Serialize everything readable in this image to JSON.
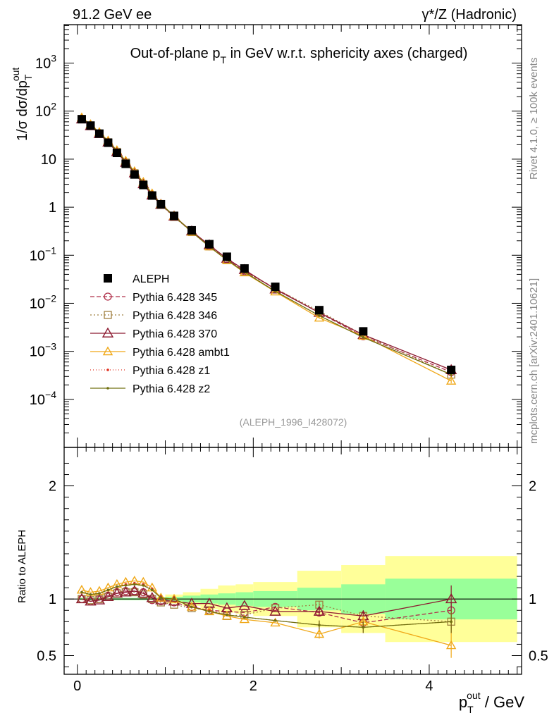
{
  "header": {
    "left": "91.2 GeV ee",
    "right_prefix": "γ*/Z",
    "right_suffix": " (Hadronic)"
  },
  "side_labels": {
    "rivet": "Rivet 4.1.0, ≥ 100k events",
    "mcplots": "mcplots.cern.ch [arXiv:2401.10621]"
  },
  "chart_data": {
    "type": "line",
    "title_main": "Out-of-plane p",
    "title_sub": "T",
    "title_rest": " in GeV w.r.t. sphericity axes (charged)",
    "watermark": "(ALEPH_1996_I428072)",
    "ylabel_text": "1/σ  dσ/dp",
    "ylabel_sub": "T",
    "ylabel_sup": "out",
    "xlabel_main": "p",
    "xlabel_sub": "T",
    "xlabel_sup": "out",
    "xlabel_rest": " / GeV",
    "ratio_ylabel": "Ratio to ALEPH",
    "xlim": [
      -0.15,
      5.05
    ],
    "ylim_main_log": [
      -5.0,
      3.8
    ],
    "ylim_ratio": [
      0.335,
      2.34
    ],
    "x_ticks": [
      "0",
      "2",
      "4"
    ],
    "y_ticks_main": [
      "10^-4",
      "10^-3",
      "10^-2",
      "10^-1",
      "1",
      "10",
      "10^2",
      "10^3"
    ],
    "y_ticks_ratio": [
      "0.5",
      "1",
      "2"
    ],
    "x": [
      0.05,
      0.15,
      0.25,
      0.35,
      0.45,
      0.55,
      0.65,
      0.75,
      0.85,
      0.95,
      1.1,
      1.3,
      1.5,
      1.7,
      1.9,
      2.25,
      2.75,
      3.25,
      4.25
    ],
    "bin_edges": [
      0.0,
      0.1,
      0.2,
      0.3,
      0.4,
      0.5,
      0.6,
      0.7,
      0.8,
      0.9,
      1.0,
      1.2,
      1.4,
      1.6,
      1.8,
      2.0,
      2.5,
      3.0,
      3.5,
      5.0
    ],
    "data_label": "ALEPH",
    "data_values": [
      68,
      50,
      34,
      22,
      13.5,
      8.0,
      4.8,
      2.9,
      1.75,
      1.15,
      0.66,
      0.33,
      0.17,
      0.093,
      0.053,
      0.022,
      0.0072,
      0.0026,
      0.00041
    ],
    "band_inner": [
      0.01,
      0.01,
      0.01,
      0.01,
      0.01,
      0.01,
      0.01,
      0.01,
      0.01,
      0.01,
      0.02,
      0.03,
      0.04,
      0.05,
      0.06,
      0.07,
      0.1,
      0.13,
      0.18
    ],
    "band_outer": [
      0.01,
      0.01,
      0.01,
      0.01,
      0.01,
      0.01,
      0.01,
      0.01,
      0.01,
      0.02,
      0.04,
      0.06,
      0.09,
      0.12,
      0.13,
      0.15,
      0.25,
      0.3,
      0.38
    ],
    "series": [
      {
        "name": "Pythia 6.428 345",
        "color": "#b0304a",
        "dash": "6,3",
        "marker": "circle",
        "ratio": [
          1.0,
          0.98,
          1.0,
          1.03,
          1.06,
          1.07,
          1.07,
          1.06,
          0.99,
          0.98,
          0.97,
          0.93,
          0.9,
          0.89,
          0.88,
          0.93,
          0.88,
          0.79,
          0.9
        ],
        "err": [
          0,
          0,
          0,
          0,
          0,
          0,
          0,
          0,
          0,
          0,
          0,
          0,
          0,
          0,
          0,
          0,
          0.03,
          0.04,
          0.07
        ]
      },
      {
        "name": "Pythia 6.428 346",
        "color": "#a08040",
        "dash": "2,3",
        "marker": "square",
        "ratio": [
          1.0,
          0.99,
          1.0,
          1.02,
          1.05,
          1.06,
          1.06,
          1.04,
          1.0,
          0.97,
          0.95,
          0.92,
          0.9,
          0.85,
          0.86,
          0.92,
          0.95,
          0.85,
          0.8
        ],
        "err": [
          0,
          0,
          0,
          0,
          0,
          0,
          0,
          0,
          0,
          0,
          0,
          0,
          0,
          0,
          0,
          0,
          0.03,
          0.04,
          0.07
        ]
      },
      {
        "name": "Pythia 6.428 370",
        "color": "#8c1a30",
        "dash": "",
        "marker": "triangle",
        "ratio": [
          1.0,
          0.98,
          0.99,
          1.02,
          1.05,
          1.06,
          1.07,
          1.05,
          1.01,
          0.99,
          0.98,
          0.96,
          0.96,
          0.92,
          0.94,
          0.89,
          0.89,
          0.85,
          1.0
        ],
        "err": [
          0,
          0,
          0,
          0,
          0,
          0,
          0,
          0,
          0,
          0,
          0,
          0,
          0,
          0,
          0,
          0,
          0.04,
          0.05,
          0.12
        ]
      },
      {
        "name": "Pythia 6.428 ambt1",
        "color": "#f0a818",
        "dash": "",
        "marker": "triangle-open",
        "ratio": [
          1.08,
          1.06,
          1.07,
          1.1,
          1.13,
          1.15,
          1.16,
          1.15,
          1.1,
          1.01,
          1.0,
          0.93,
          0.89,
          0.85,
          0.82,
          0.79,
          0.69,
          0.8,
          0.59
        ],
        "err": [
          0,
          0,
          0,
          0,
          0,
          0,
          0,
          0,
          0,
          0,
          0,
          0,
          0,
          0,
          0,
          0,
          0.04,
          0.05,
          0.11
        ]
      },
      {
        "name": "Pythia 6.428 z1",
        "color": "#e03020",
        "dash": "1,3",
        "marker": "dot",
        "ratio": [
          1.06,
          1.04,
          1.05,
          1.08,
          1.11,
          1.13,
          1.14,
          1.13,
          1.09,
          1.01,
          1.0,
          0.93,
          0.9,
          0.86,
          0.84,
          0.81,
          0.77,
          0.75,
          0.8
        ],
        "err": [
          0,
          0,
          0,
          0,
          0,
          0,
          0,
          0,
          0,
          0,
          0,
          0,
          0,
          0,
          0,
          0,
          0.04,
          0.05,
          0.1
        ]
      },
      {
        "name": "Pythia 6.428 z2",
        "color": "#707010",
        "dash": "",
        "marker": "dot",
        "ratio": [
          1.06,
          1.04,
          1.05,
          1.08,
          1.11,
          1.12,
          1.13,
          1.12,
          1.08,
          1.01,
          1.0,
          0.93,
          0.89,
          0.86,
          0.84,
          0.81,
          0.77,
          0.75,
          0.8
        ],
        "err": [
          0,
          0,
          0,
          0,
          0,
          0,
          0,
          0,
          0,
          0,
          0,
          0,
          0,
          0,
          0,
          0,
          0.04,
          0.05,
          0.1
        ]
      }
    ]
  }
}
